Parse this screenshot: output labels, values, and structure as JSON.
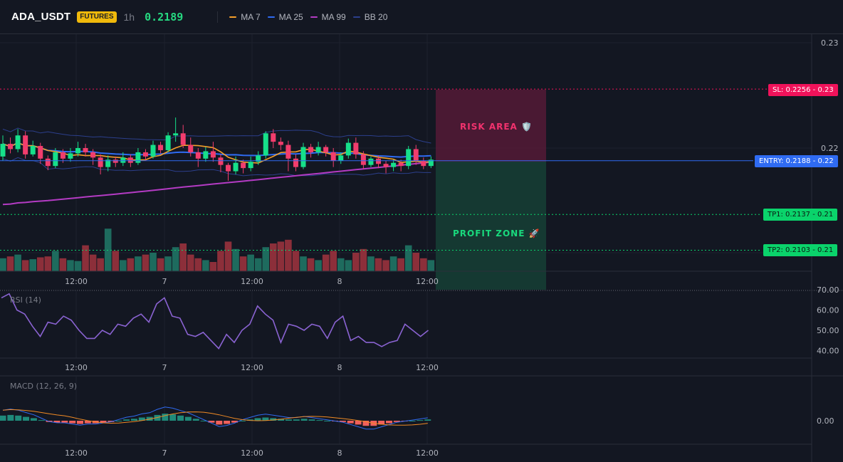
{
  "header": {
    "symbol": "ADA_USDT",
    "badge": "FUTURES",
    "timeframe": "1h",
    "price": "0.2189",
    "indicators": [
      {
        "label": "MA 7",
        "color": "#f59f2a"
      },
      {
        "label": "MA 25",
        "color": "#2f6bf2"
      },
      {
        "label": "MA 99",
        "color": "#b43bc4"
      },
      {
        "label": "BB 20",
        "color": "#2c3f8c"
      }
    ]
  },
  "colors": {
    "up": "#16e08a",
    "down": "#f23d6d",
    "vol_up": "#1e6b5e",
    "vol_down": "#8c2f3a",
    "rsi": "#8a63d2",
    "macd": "#2f6bf2",
    "signal": "#f08a24",
    "sl": "#f0125a",
    "entry": "#2f6bf2",
    "tp": "#0ad36b"
  },
  "price_axis": {
    "ticks": [
      "0.23",
      "0.22"
    ]
  },
  "time_axis": [
    "12:00",
    "7",
    "12:00",
    "8",
    "12:00"
  ],
  "levels": {
    "sl": {
      "label": "SL: 0.2256",
      "suffix": "0.23",
      "value": 0.2256
    },
    "entry": {
      "label": "ENTRY: 0.2188",
      "suffix": "0.22",
      "value": 0.2188
    },
    "tp1": {
      "label": "TP1: 0.2137",
      "suffix": "0.21",
      "value": 0.2137
    },
    "tp2": {
      "label": "TP2: 0.2103",
      "suffix": "0.21",
      "value": 0.2103
    }
  },
  "zones": {
    "risk": "RISK AREA 🛡️",
    "profit": "PROFIT ZONE 🚀"
  },
  "rsi": {
    "label": "RSI (14)",
    "ticks": [
      "70.00",
      "60.00",
      "50.00",
      "40.00"
    ]
  },
  "macd": {
    "label": "MACD (12, 26, 9)",
    "ticks": [
      "0.00"
    ]
  },
  "chart_data": {
    "type": "candlestick",
    "candles": [
      [
        0.2192,
        0.2204,
        0.2212,
        0.2188
      ],
      [
        0.2204,
        0.2199,
        0.221,
        0.2195
      ],
      [
        0.2199,
        0.2212,
        0.2218,
        0.2196
      ],
      [
        0.2212,
        0.2194,
        0.2216,
        0.219
      ],
      [
        0.2194,
        0.2202,
        0.2207,
        0.2192
      ],
      [
        0.2202,
        0.219,
        0.2205,
        0.2185
      ],
      [
        0.219,
        0.2183,
        0.2193,
        0.2179
      ],
      [
        0.2183,
        0.2196,
        0.22,
        0.2181
      ],
      [
        0.2196,
        0.219,
        0.2199,
        0.2186
      ],
      [
        0.219,
        0.2195,
        0.22,
        0.2187
      ],
      [
        0.2195,
        0.22,
        0.2206,
        0.2192
      ],
      [
        0.22,
        0.2196,
        0.2204,
        0.2192
      ],
      [
        0.2196,
        0.2191,
        0.2199,
        0.2184
      ],
      [
        0.2191,
        0.2182,
        0.2194,
        0.2175
      ],
      [
        0.2182,
        0.2189,
        0.2193,
        0.2178
      ],
      [
        0.2189,
        0.2186,
        0.2192,
        0.2182
      ],
      [
        0.2186,
        0.2191,
        0.2196,
        0.2183
      ],
      [
        0.2191,
        0.2186,
        0.2194,
        0.2182
      ],
      [
        0.2186,
        0.2196,
        0.22,
        0.2184
      ],
      [
        0.2196,
        0.2192,
        0.2199,
        0.2188
      ],
      [
        0.2192,
        0.2203,
        0.2207,
        0.219
      ],
      [
        0.2203,
        0.2198,
        0.2206,
        0.2195
      ],
      [
        0.2198,
        0.2212,
        0.2215,
        0.2196
      ],
      [
        0.2212,
        0.2214,
        0.2229,
        0.2206
      ],
      [
        0.2214,
        0.2203,
        0.2222,
        0.22
      ],
      [
        0.2203,
        0.2196,
        0.221,
        0.2192
      ],
      [
        0.2196,
        0.219,
        0.22,
        0.2182
      ],
      [
        0.219,
        0.2197,
        0.2201,
        0.2187
      ],
      [
        0.2197,
        0.2191,
        0.2206,
        0.2187
      ],
      [
        0.2191,
        0.2184,
        0.2194,
        0.2177
      ],
      [
        0.2184,
        0.2178,
        0.2186,
        0.2169
      ],
      [
        0.2178,
        0.2186,
        0.2192,
        0.2175
      ],
      [
        0.2186,
        0.2181,
        0.2189,
        0.2176
      ],
      [
        0.2181,
        0.2187,
        0.2192,
        0.2178
      ],
      [
        0.2187,
        0.2193,
        0.2197,
        0.2184
      ],
      [
        0.2193,
        0.2214,
        0.2216,
        0.219
      ],
      [
        0.2214,
        0.2206,
        0.2218,
        0.22
      ],
      [
        0.2206,
        0.2203,
        0.221,
        0.2198
      ],
      [
        0.2203,
        0.219,
        0.2207,
        0.2178
      ],
      [
        0.219,
        0.2182,
        0.2194,
        0.2178
      ],
      [
        0.2182,
        0.2201,
        0.2205,
        0.218
      ],
      [
        0.2201,
        0.2196,
        0.2204,
        0.2191
      ],
      [
        0.2196,
        0.2201,
        0.2206,
        0.2193
      ],
      [
        0.2201,
        0.2196,
        0.2203,
        0.2192
      ],
      [
        0.2196,
        0.2188,
        0.22,
        0.2182
      ],
      [
        0.2188,
        0.2193,
        0.2196,
        0.2185
      ],
      [
        0.2193,
        0.2205,
        0.2209,
        0.219
      ],
      [
        0.2205,
        0.2194,
        0.221,
        0.219
      ],
      [
        0.2194,
        0.2184,
        0.2197,
        0.218
      ],
      [
        0.2184,
        0.219,
        0.2192,
        0.2182
      ],
      [
        0.219,
        0.2185,
        0.2193,
        0.2181
      ],
      [
        0.2185,
        0.2182,
        0.2188,
        0.2176
      ],
      [
        0.2182,
        0.2186,
        0.2189,
        0.2178
      ],
      [
        0.2186,
        0.2183,
        0.2189,
        0.2178
      ],
      [
        0.2183,
        0.2199,
        0.2202,
        0.218
      ],
      [
        0.2199,
        0.2188,
        0.2203,
        0.2184
      ],
      [
        0.2188,
        0.2183,
        0.2191,
        0.218
      ],
      [
        0.2183,
        0.2189,
        0.2192,
        0.2181
      ]
    ],
    "volume": [
      14,
      16,
      18,
      12,
      13,
      15,
      16,
      22,
      14,
      12,
      11,
      28,
      18,
      14,
      46,
      22,
      12,
      14,
      16,
      18,
      20,
      14,
      16,
      26,
      30,
      18,
      14,
      12,
      10,
      22,
      32,
      24,
      16,
      18,
      14,
      26,
      30,
      32,
      34,
      22,
      16,
      14,
      12,
      18,
      22,
      14,
      12,
      20,
      24,
      16,
      14,
      12,
      16,
      14,
      28,
      20,
      14,
      12
    ],
    "rsi_values": [
      66,
      68,
      60,
      58,
      52,
      47,
      54,
      53,
      57,
      55,
      50,
      46,
      46,
      50,
      48,
      53,
      52,
      56,
      58,
      54,
      63,
      66,
      57,
      56,
      48,
      47,
      49,
      45,
      41,
      48,
      44,
      50,
      53,
      62,
      58,
      55,
      44,
      53,
      52,
      50,
      53,
      52,
      46,
      54,
      57,
      45,
      47,
      44,
      44,
      42,
      44,
      45,
      53,
      50,
      47,
      50
    ],
    "macd_values": [
      8e-05,
      9e-05,
      8e-05,
      6e-05,
      4e-05,
      1e-05,
      -2e-05,
      -3e-05,
      -3e-05,
      -4e-05,
      -5e-05,
      -4e-05,
      -4e-05,
      -3e-05,
      -2e-05,
      0.0,
      2e-05,
      3e-05,
      5e-05,
      6e-05,
      9e-05,
      0.00011,
      0.0001,
      8e-05,
      6e-05,
      3e-05,
      0.0,
      -3e-05,
      -6e-05,
      -5e-05,
      -3e-05,
      0.0,
      2e-05,
      4e-05,
      5e-05,
      4e-05,
      3e-05,
      2e-05,
      2e-05,
      3e-05,
      2e-05,
      1e-05,
      0.0,
      -1e-05,
      -2e-05,
      -4e-05,
      -6e-05,
      -8e-05,
      -8e-05,
      -6e-05,
      -4e-05,
      -2e-05,
      -1e-05,
      0.0,
      1e-05,
      2e-05
    ]
  }
}
